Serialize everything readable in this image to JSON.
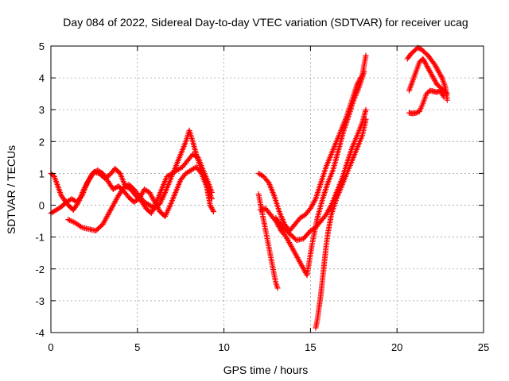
{
  "chart_data": {
    "type": "scatter",
    "title": "Day 084 of 2022, Sidereal Day-to-day VTEC variation (SDTVAR) for receiver ucag",
    "xlabel": "GPS time / hours",
    "ylabel": "SDTVAR / TECUs",
    "xlim": [
      0,
      25
    ],
    "ylim": [
      -4,
      5
    ],
    "xticks": [
      0,
      5,
      10,
      15,
      20,
      25
    ],
    "yticks": [
      -4,
      -3,
      -2,
      -1,
      0,
      1,
      2,
      3,
      4,
      5
    ],
    "grid": true,
    "marker": "+",
    "color": "#ff0000",
    "series": [
      {
        "x": [
          0.0,
          0.2,
          0.4,
          0.6,
          0.8,
          1.0,
          1.3,
          1.6,
          1.9,
          2.2,
          2.5,
          2.8,
          3.1,
          3.4,
          3.7,
          4.0,
          4.3,
          4.6,
          4.9,
          5.2,
          5.5,
          5.8,
          6.1,
          6.4,
          6.7,
          7.0,
          7.3,
          7.6,
          7.9,
          8.2,
          8.5,
          8.8,
          9.1,
          9.3
        ],
        "y": [
          1.0,
          0.9,
          0.6,
          0.3,
          0.15,
          0.0,
          -0.15,
          0.1,
          0.5,
          0.8,
          1.05,
          1.0,
          0.85,
          0.95,
          1.15,
          1.0,
          0.6,
          0.5,
          0.3,
          0.15,
          -0.1,
          -0.25,
          0.1,
          0.5,
          0.9,
          1.0,
          1.1,
          1.2,
          1.4,
          1.6,
          1.5,
          1.1,
          0.7,
          0.4
        ]
      },
      {
        "x": [
          0.0,
          0.3,
          0.6,
          0.9,
          1.2,
          1.5,
          1.8,
          2.1,
          2.4,
          2.7,
          3.0,
          3.3,
          3.6,
          3.9,
          4.2,
          4.5,
          4.8,
          5.1,
          5.4,
          5.7,
          6.0,
          6.3,
          6.6,
          6.9,
          7.2,
          7.5,
          7.8,
          8.1,
          8.4,
          8.7,
          9.0,
          9.3
        ],
        "y": [
          -0.25,
          -0.15,
          -0.05,
          0.1,
          0.2,
          0.1,
          0.3,
          0.7,
          1.0,
          1.1,
          1.0,
          0.75,
          0.5,
          0.6,
          0.45,
          0.25,
          0.1,
          0.2,
          0.5,
          0.4,
          0.1,
          -0.2,
          -0.35,
          0.0,
          0.4,
          0.8,
          1.0,
          1.1,
          1.2,
          1.0,
          0.6,
          0.2
        ]
      },
      {
        "x": [
          1.0,
          1.4,
          1.8,
          2.2,
          2.6,
          3.0,
          3.3,
          3.6,
          3.9,
          4.2,
          4.5,
          4.8,
          5.1,
          5.4,
          5.7,
          6.0,
          6.3,
          6.6,
          6.9,
          7.2,
          7.5,
          7.8,
          8.0,
          8.2,
          8.4,
          8.7,
          9.0,
          9.2,
          9.4
        ],
        "y": [
          -0.45,
          -0.55,
          -0.7,
          -0.75,
          -0.8,
          -0.6,
          -0.3,
          0.0,
          0.3,
          0.55,
          0.65,
          0.5,
          0.3,
          0.1,
          0.0,
          -0.1,
          0.05,
          0.4,
          0.8,
          1.2,
          1.6,
          2.0,
          2.35,
          2.0,
          1.6,
          1.1,
          0.6,
          0.0,
          -0.2
        ]
      },
      {
        "x": [
          12.0,
          12.3,
          12.6,
          12.9,
          13.2,
          13.5,
          13.8,
          14.1,
          14.4,
          14.7,
          15.0,
          15.3,
          15.6,
          15.9,
          16.2,
          16.5,
          16.8,
          17.1,
          17.4,
          17.7,
          18.0,
          18.2
        ],
        "y": [
          1.0,
          0.9,
          0.7,
          0.3,
          -0.2,
          -0.6,
          -0.8,
          -0.6,
          -0.4,
          -0.3,
          -0.1,
          0.2,
          0.7,
          1.2,
          1.6,
          2.0,
          2.4,
          2.8,
          3.3,
          3.8,
          4.1,
          4.7
        ]
      },
      {
        "x": [
          12.1,
          12.4,
          12.7,
          13.0,
          13.3,
          13.6,
          13.9,
          14.2,
          14.5,
          14.8,
          15.1,
          15.4,
          15.7,
          16.0,
          16.3,
          16.6,
          16.9,
          17.2,
          17.5,
          17.8,
          18.1
        ],
        "y": [
          -0.15,
          -0.1,
          -0.3,
          -0.5,
          -0.8,
          -1.0,
          -1.3,
          -1.6,
          -1.9,
          -2.2,
          -1.2,
          -0.4,
          0.2,
          0.7,
          1.1,
          1.7,
          2.3,
          2.8,
          3.3,
          3.7,
          4.2
        ]
      },
      {
        "x": [
          13.0,
          13.4,
          13.8,
          14.2,
          14.6,
          15.0,
          15.3,
          15.6,
          15.9,
          16.2,
          16.5,
          16.8,
          17.1,
          17.4,
          17.7,
          18.0,
          18.2
        ],
        "y": [
          -0.4,
          -0.7,
          -0.9,
          -1.1,
          -1.05,
          -0.8,
          -0.7,
          -0.5,
          -0.3,
          0.0,
          0.4,
          0.8,
          1.3,
          1.8,
          2.2,
          2.6,
          3.0
        ]
      },
      {
        "x": [
          15.3,
          15.4,
          15.5,
          15.6,
          15.7,
          15.8,
          15.9,
          16.0,
          16.2,
          16.5,
          16.8,
          17.1,
          17.4,
          17.7,
          18.0,
          18.2
        ],
        "y": [
          -3.85,
          -3.6,
          -3.2,
          -2.8,
          -2.3,
          -1.8,
          -1.3,
          -0.9,
          -0.3,
          0.2,
          0.6,
          1.0,
          1.4,
          1.8,
          2.2,
          2.7
        ]
      },
      {
        "x": [
          12.0,
          13.0,
          13.1
        ],
        "y": [
          0.35,
          -2.45,
          -2.6
        ]
      },
      {
        "x": [
          20.6,
          20.8,
          21.0,
          21.2,
          21.4,
          21.6,
          21.8,
          22.0,
          22.2,
          22.4,
          22.6,
          22.8,
          22.9
        ],
        "y": [
          4.6,
          4.75,
          4.85,
          4.95,
          4.9,
          4.8,
          4.7,
          4.55,
          4.4,
          4.2,
          4.0,
          3.7,
          3.3
        ]
      },
      {
        "x": [
          20.7,
          20.9,
          21.1,
          21.3,
          21.5,
          21.7,
          21.9,
          22.1,
          22.3,
          22.5,
          22.7,
          22.9
        ],
        "y": [
          3.6,
          3.9,
          4.2,
          4.5,
          4.6,
          4.4,
          4.2,
          4.0,
          3.8,
          3.7,
          3.6,
          3.5
        ]
      },
      {
        "x": [
          20.7,
          20.9,
          21.1,
          21.3,
          21.5,
          21.7,
          21.9,
          22.1,
          22.3,
          22.5,
          22.7
        ],
        "y": [
          2.9,
          2.88,
          2.9,
          2.95,
          3.2,
          3.5,
          3.6,
          3.58,
          3.55,
          3.6,
          3.4
        ]
      }
    ]
  }
}
